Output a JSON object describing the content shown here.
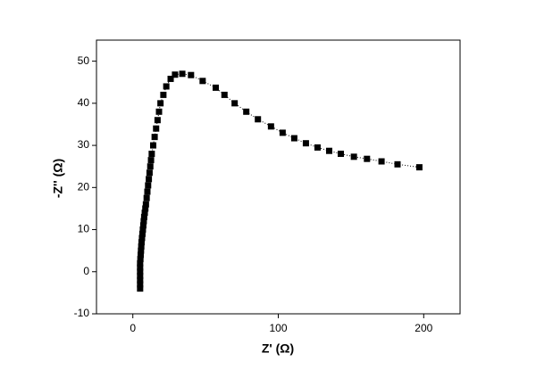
{
  "chart_data": {
    "type": "scatter",
    "x_label": "Z'  (Ω)",
    "y_label": "-Z'' (Ω)",
    "x": [
      5,
      5,
      5,
      5,
      5,
      5,
      5,
      5.2,
      5.4,
      5.6,
      5.8,
      6,
      6.3,
      6.6,
      6.9,
      7.2,
      7.5,
      7.8,
      8.2,
      8.6,
      9,
      9.5,
      10,
      10.5,
      11,
      11.5,
      12,
      12.5,
      13,
      14,
      15,
      16,
      17,
      18,
      19,
      21,
      23,
      26,
      29,
      34,
      40,
      48,
      57,
      63,
      70,
      78,
      86,
      95,
      103,
      111,
      119,
      127,
      135,
      143,
      152,
      161,
      171,
      182,
      197
    ],
    "values": [
      -4,
      -3,
      -2,
      -1,
      0,
      1,
      2,
      3,
      4,
      5,
      6,
      7,
      8,
      9,
      10,
      11,
      12,
      13,
      14,
      15,
      16,
      17.5,
      19,
      20.5,
      22,
      23.5,
      25,
      26.5,
      28,
      30,
      32,
      34,
      36,
      38,
      40,
      42,
      44,
      45.8,
      46.8,
      47,
      46.7,
      45.3,
      43.7,
      42,
      40,
      38,
      36.2,
      34.5,
      33,
      31.7,
      30.5,
      29.5,
      28.7,
      28,
      27.3,
      26.8,
      26.2,
      25.5,
      24.8
    ],
    "color": "#000000",
    "xlim": [
      -25,
      225
    ],
    "xticks": [
      0,
      100,
      200
    ],
    "ylim": [
      -10,
      55
    ],
    "yticks": [
      -10,
      0,
      10,
      20,
      30,
      40,
      50
    ]
  }
}
